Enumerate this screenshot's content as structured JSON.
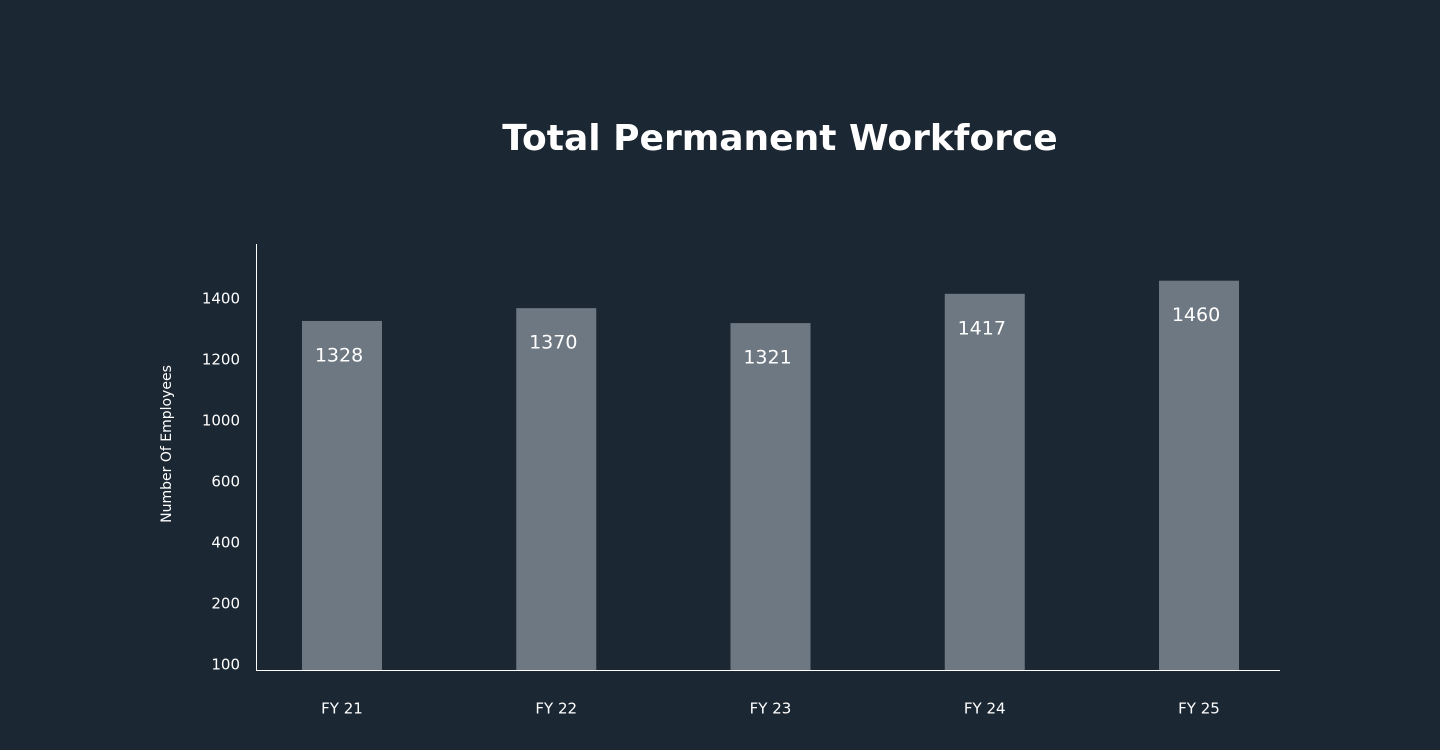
{
  "chart_data": {
    "type": "bar",
    "title": "Total Permanent Workforce",
    "y_label": "Number Of Employees",
    "categories": [
      "FY 21",
      "FY 22",
      "FY 23",
      "FY 24",
      "FY 25"
    ],
    "values": [
      1328,
      1370,
      1321,
      1417,
      1460
    ],
    "color": "#6e7882",
    "ylim": [
      100,
      1580
    ],
    "yticks": [
      100,
      200,
      400,
      600,
      1000,
      1200,
      1400
    ]
  }
}
